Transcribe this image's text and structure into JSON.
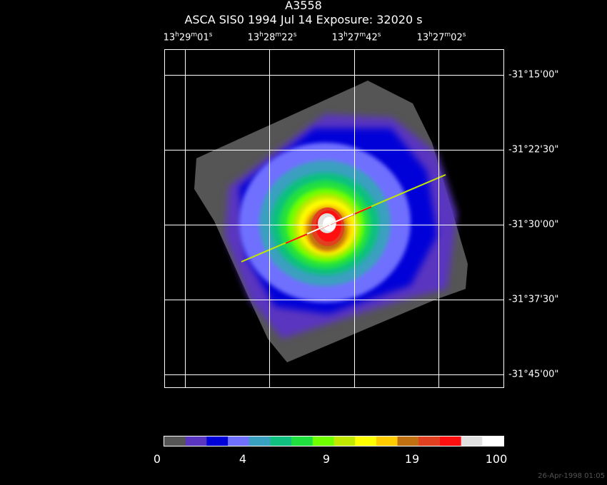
{
  "header": {
    "title": "A3558",
    "subtitle": "ASCA SIS0   1994 Jul 14    Exposure: 32020 s"
  },
  "ra_ticks": [
    {
      "h": "13",
      "m": "29",
      "s": "01"
    },
    {
      "h": "13",
      "m": "28",
      "s": "22"
    },
    {
      "h": "13",
      "m": "27",
      "s": "42"
    },
    {
      "h": "13",
      "m": "27",
      "s": "02"
    }
  ],
  "dec_ticks": [
    "-31°15'00\"",
    "-31°22'30\"",
    "-31°30'00\"",
    "-31°37'30\"",
    "-31°45'00\""
  ],
  "colorbar": {
    "colors": [
      "#555555",
      "#5a35c0",
      "#0000d8",
      "#7070ff",
      "#3aa0c0",
      "#10c080",
      "#20e040",
      "#70ff00",
      "#c0e800",
      "#ffff00",
      "#ffcc00",
      "#c07010",
      "#e04020",
      "#ff1010",
      "#e0e0e0",
      "#ffffff"
    ],
    "labels": [
      "0",
      "4",
      "9",
      "19",
      "100"
    ]
  },
  "footer": "26-Apr-1998 01:05"
}
